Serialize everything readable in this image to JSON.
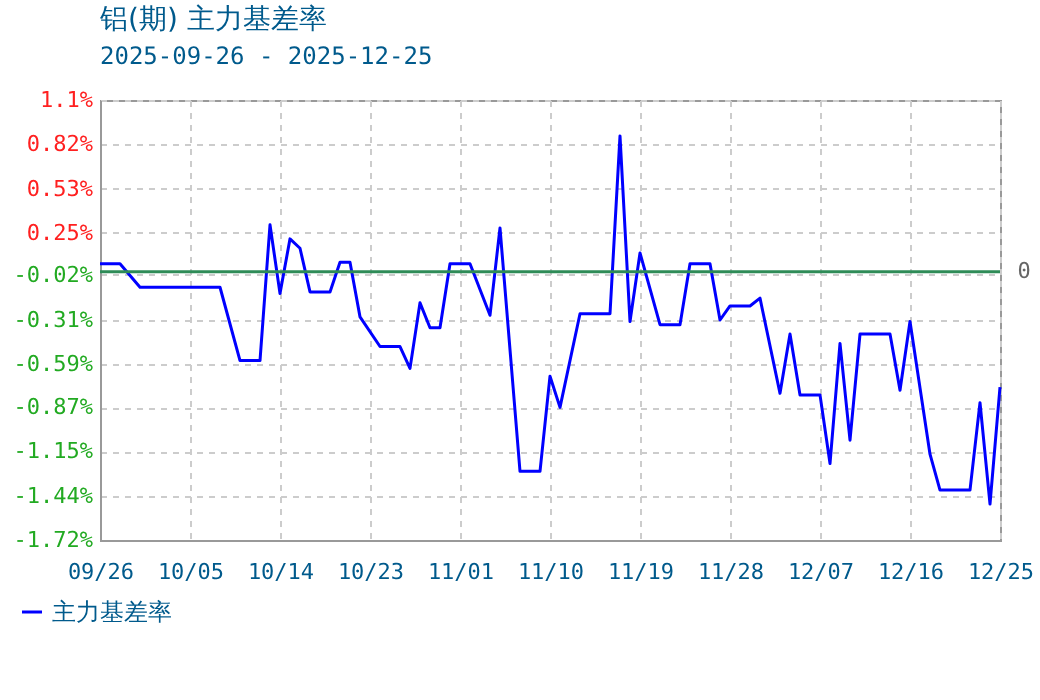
{
  "chart_data": {
    "type": "line",
    "title": "铝(期) 主力基差率",
    "subtitle": "2025-09-26 - 2025-12-25",
    "x": [
      "2025-09-26",
      "2025-09-28",
      "2025-09-30",
      "2025-10-08",
      "2025-10-10",
      "2025-10-12",
      "2025-10-13",
      "2025-10-14",
      "2025-10-15",
      "2025-10-16",
      "2025-10-17",
      "2025-10-19",
      "2025-10-20",
      "2025-10-21",
      "2025-10-22",
      "2025-10-24",
      "2025-10-26",
      "2025-10-27",
      "2025-10-28",
      "2025-10-29",
      "2025-10-30",
      "2025-10-31",
      "2025-11-02",
      "2025-11-04",
      "2025-11-05",
      "2025-11-07",
      "2025-11-09",
      "2025-11-10",
      "2025-11-11",
      "2025-11-13",
      "2025-11-16",
      "2025-11-17",
      "2025-11-18",
      "2025-11-19",
      "2025-11-21",
      "2025-11-23",
      "2025-11-24",
      "2025-11-26",
      "2025-11-27",
      "2025-11-28",
      "2025-11-30",
      "2025-12-01",
      "2025-12-03",
      "2025-12-04",
      "2025-12-05",
      "2025-12-07",
      "2025-12-08",
      "2025-12-09",
      "2025-12-10",
      "2025-12-11",
      "2025-12-14",
      "2025-12-15",
      "2025-12-16",
      "2025-12-18",
      "2025-12-19",
      "2025-12-22",
      "2025-12-23",
      "2025-12-24",
      "2025-12-25"
    ],
    "series": [
      {
        "name": "主力基差率",
        "color": "#0000ff",
        "values": [
          0.05,
          0.05,
          -0.1,
          -0.1,
          -0.57,
          -0.57,
          0.3,
          -0.14,
          0.21,
          0.15,
          -0.13,
          -0.13,
          0.06,
          0.06,
          -0.29,
          -0.48,
          -0.48,
          -0.62,
          -0.2,
          -0.36,
          -0.36,
          0.05,
          0.05,
          -0.28,
          0.28,
          -1.28,
          -1.28,
          -0.67,
          -0.87,
          -0.27,
          -0.27,
          0.87,
          -0.32,
          0.12,
          -0.34,
          -0.34,
          0.05,
          0.05,
          -0.31,
          -0.22,
          -0.22,
          -0.17,
          -0.78,
          -0.4,
          -0.79,
          -0.79,
          -1.23,
          -0.46,
          -1.08,
          -0.4,
          -0.4,
          -0.76,
          -0.32,
          -1.17,
          -1.4,
          -1.4,
          -0.84,
          -1.49,
          -0.74
        ]
      }
    ],
    "xlim": [
      "2025-09-26",
      "2025-12-25"
    ],
    "xticks": [
      {
        "value": "2025-09-26",
        "label": "09/26"
      },
      {
        "value": "2025-10-05",
        "label": "10/05"
      },
      {
        "value": "2025-10-14",
        "label": "10/14"
      },
      {
        "value": "2025-10-23",
        "label": "10/23"
      },
      {
        "value": "2025-11-01",
        "label": "11/01"
      },
      {
        "value": "2025-11-10",
        "label": "11/10"
      },
      {
        "value": "2025-11-19",
        "label": "11/19"
      },
      {
        "value": "2025-11-28",
        "label": "11/28"
      },
      {
        "value": "2025-12-07",
        "label": "12/07"
      },
      {
        "value": "2025-12-16",
        "label": "12/16"
      },
      {
        "value": "2025-12-25",
        "label": "12/25"
      }
    ],
    "ylim": [
      -1.72,
      1.1
    ],
    "yticks": [
      {
        "value": -1.72,
        "label": "-1.72%"
      },
      {
        "value": -1.44,
        "label": "-1.44%"
      },
      {
        "value": -1.15,
        "label": "-1.15%"
      },
      {
        "value": -0.87,
        "label": "-0.87%"
      },
      {
        "value": -0.59,
        "label": "-0.59%"
      },
      {
        "value": -0.31,
        "label": "-0.31%"
      },
      {
        "value": -0.02,
        "label": "-0.02%"
      },
      {
        "value": 0.25,
        "label": "0.25%"
      },
      {
        "value": 0.53,
        "label": "0.53%"
      },
      {
        "value": 0.82,
        "label": "0.82%"
      },
      {
        "value": 1.1,
        "label": "1.1%"
      }
    ],
    "ref_lines": [
      {
        "axis": "y",
        "value": 0,
        "label": "0",
        "color": "#2e8b57"
      }
    ],
    "grid": true,
    "legend": "bottom left",
    "marker": "none",
    "line_style": "solid"
  }
}
